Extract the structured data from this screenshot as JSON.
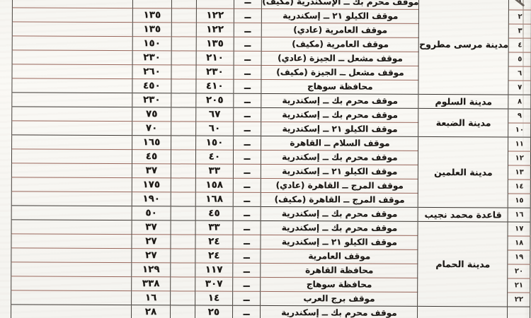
{
  "table": {
    "dash": "ــ",
    "sections": [
      {
        "city": "مدينة مرسى مطروح",
        "rows": [
          {
            "no": "١",
            "fare_left": "",
            "fare_right": "",
            "stop": "موقف محرم بك ــ الإسكندرية (مكيف)"
          },
          {
            "no": "٢",
            "fare_left": "١٣٥",
            "fare_right": "١٢٢",
            "stop": "موقف الكيلو ٢١ ــ إسكندرية"
          },
          {
            "no": "٣",
            "fare_left": "١٣٥",
            "fare_right": "١٢٢",
            "stop": "موقف العامرية (عادي)"
          },
          {
            "no": "٤",
            "fare_left": "١٥٠",
            "fare_right": "١٣٥",
            "stop": "موقف العامرية (مكيف)"
          },
          {
            "no": "٥",
            "fare_left": "٢٣٠",
            "fare_right": "٢١٠",
            "stop": "موقف مشعل ــ الجيزة (عادي)"
          },
          {
            "no": "٦",
            "fare_left": "٢٦٠",
            "fare_right": "٢٣٠",
            "stop": "موقف مشعل ــ الجيزة (مكيف)"
          },
          {
            "no": "٧",
            "fare_left": "٤٥٠",
            "fare_right": "٤١٠",
            "stop": "محافظة سوهاج"
          }
        ]
      },
      {
        "city": "مدينة السلوم",
        "rows": [
          {
            "no": "٨",
            "fare_left": "٢٣٠",
            "fare_right": "٢٠٥",
            "stop": "موقف محرم بك ــ إسكندرية"
          }
        ]
      },
      {
        "city": "مدينة الضبعة",
        "rows": [
          {
            "no": "٩",
            "fare_left": "٧٥",
            "fare_right": "٦٧",
            "stop": "موقف محرم بك ــ إسكندرية"
          },
          {
            "no": "١٠",
            "fare_left": "٧٠",
            "fare_right": "٦٠",
            "stop": "موقف الكيلو ٢١ ــ إسكندرية"
          }
        ]
      },
      {
        "city": "مدينة العلمين",
        "rows": [
          {
            "no": "١١",
            "fare_left": "١٦٥",
            "fare_right": "١٥٠",
            "stop": "موقف السلام ــ القاهرة"
          },
          {
            "no": "١٢",
            "fare_left": "٤٥",
            "fare_right": "٤٠",
            "stop": "موقف محرم بك ــ إسكندرية"
          },
          {
            "no": "١٣",
            "fare_left": "٣٧",
            "fare_right": "٣٣",
            "stop": "موقف الكيلو ٢١ ــ إسكندرية"
          },
          {
            "no": "١٤",
            "fare_left": "١٧٥",
            "fare_right": "١٥٨",
            "stop": "موقف المرج ــ القاهرة (عادي)"
          },
          {
            "no": "١٥",
            "fare_left": "١٩٠",
            "fare_right": "١٦٨",
            "stop": "موقف المرج ــ القاهرة (مكيف)"
          }
        ]
      },
      {
        "city": "قاعدة محمد نجيب",
        "rows": [
          {
            "no": "١٦",
            "fare_left": "٥٠",
            "fare_right": "٤٥",
            "stop": "موقف محرم بك ــ إسكندرية"
          }
        ]
      },
      {
        "city": "مدينة الحمام",
        "rows": [
          {
            "no": "١٧",
            "fare_left": "٣٧",
            "fare_right": "٣٣",
            "stop": "موقف محرم بك ــ إسكندرية"
          },
          {
            "no": "١٨",
            "fare_left": "٢٧",
            "fare_right": "٢٤",
            "stop": "موقف الكيلو ٢١ ــ إسكندرية"
          },
          {
            "no": "١٩",
            "fare_left": "٢٧",
            "fare_right": "٢٤",
            "stop": "موقف العامرية"
          },
          {
            "no": "٢٠",
            "fare_left": "١٢٩",
            "fare_right": "١١٧",
            "stop": "محافظة القاهرة"
          },
          {
            "no": "٢١",
            "fare_left": "٣٣٨",
            "fare_right": "٣٠٧",
            "stop": "محافظة سوهاج"
          },
          {
            "no": "٢٢",
            "fare_left": "١٦",
            "fare_right": "١٤",
            "stop": "موقف برج العرب"
          }
        ]
      },
      {
        "city": "",
        "rows": [
          {
            "no": "",
            "fare_left": "٢٨",
            "fare_right": "٢٥",
            "stop": "موقف محرم بك ــ إسكندرية"
          }
        ]
      }
    ]
  }
}
